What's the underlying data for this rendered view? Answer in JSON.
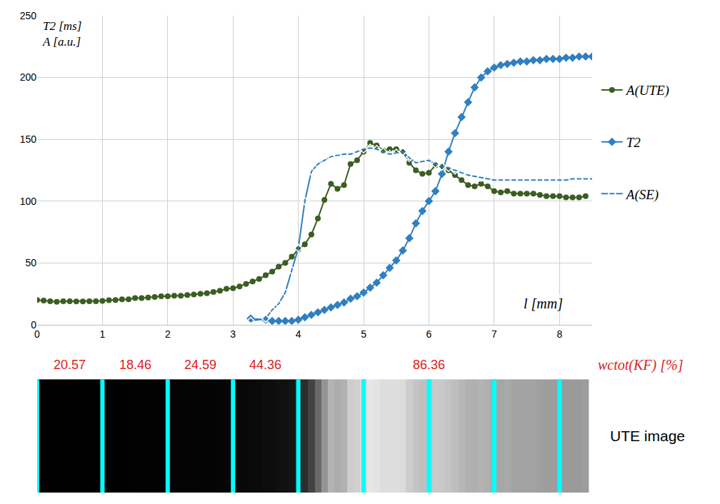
{
  "chart_data": {
    "type": "line",
    "x_label": "l [mm]",
    "y_labels": [
      "T2 [ms]",
      "A [a.u.]"
    ],
    "xlim": [
      0,
      8.5
    ],
    "xticks": [
      0,
      1,
      2,
      3,
      4,
      5,
      6,
      7,
      8
    ],
    "ylim": [
      0,
      250
    ],
    "yticks": [
      0,
      50,
      100,
      150,
      200,
      250
    ],
    "grid": true,
    "legend": "right",
    "series": [
      {
        "name": "A(UTE)",
        "color": "#3b5e22",
        "marker": "circle",
        "line_style": "solid",
        "x": [
          0,
          0.1,
          0.2,
          0.3,
          0.4,
          0.5,
          0.6,
          0.7,
          0.8,
          0.9,
          1.0,
          1.1,
          1.2,
          1.3,
          1.4,
          1.5,
          1.6,
          1.7,
          1.8,
          1.9,
          2.0,
          2.1,
          2.2,
          2.3,
          2.4,
          2.5,
          2.6,
          2.7,
          2.8,
          2.9,
          3.0,
          3.1,
          3.2,
          3.3,
          3.4,
          3.5,
          3.6,
          3.7,
          3.8,
          3.9,
          4.0,
          4.1,
          4.2,
          4.3,
          4.4,
          4.5,
          4.6,
          4.7,
          4.8,
          4.9,
          5.0,
          5.1,
          5.2,
          5.3,
          5.4,
          5.5,
          5.6,
          5.7,
          5.8,
          5.9,
          6.0,
          6.1,
          6.2,
          6.3,
          6.4,
          6.5,
          6.6,
          6.7,
          6.8,
          6.9,
          7.0,
          7.1,
          7.2,
          7.3,
          7.4,
          7.5,
          7.6,
          7.7,
          7.8,
          7.9,
          8.0,
          8.1,
          8.2,
          8.3,
          8.4
        ],
        "values": [
          20,
          19.5,
          19,
          18.5,
          19,
          19,
          18.8,
          18.8,
          18.9,
          19,
          19.2,
          19.8,
          20,
          20.5,
          20.5,
          21.5,
          21.5,
          22,
          22.5,
          23,
          23,
          23.5,
          23.5,
          24,
          24.5,
          25,
          25.5,
          26.5,
          27.5,
          29,
          29.5,
          31,
          33,
          35,
          37,
          40,
          43,
          47,
          50,
          55,
          61,
          65,
          73,
          86,
          101,
          114,
          110,
          113,
          130,
          133,
          140,
          147,
          145,
          141,
          142,
          142,
          140,
          131,
          125,
          122,
          123,
          129,
          128,
          125,
          121,
          117,
          113,
          112,
          114,
          112,
          108,
          107,
          108,
          106,
          106,
          106,
          106,
          105,
          104,
          104,
          104,
          103,
          103,
          103,
          104
        ]
      },
      {
        "name": "T2",
        "color": "#2f7fc1",
        "marker": "diamond",
        "line_style": "solid",
        "x": [
          3.27,
          3.5,
          3.6,
          3.7,
          3.8,
          3.9,
          4.0,
          4.1,
          4.2,
          4.3,
          4.4,
          4.5,
          4.6,
          4.7,
          4.8,
          4.9,
          5.0,
          5.1,
          5.2,
          5.3,
          5.4,
          5.5,
          5.6,
          5.7,
          5.8,
          5.9,
          6.0,
          6.1,
          6.2,
          6.3,
          6.4,
          6.5,
          6.6,
          6.7,
          6.8,
          6.9,
          7.0,
          7.1,
          7.2,
          7.3,
          7.4,
          7.5,
          7.6,
          7.7,
          7.8,
          7.9,
          8.0,
          8.1,
          8.2,
          8.3,
          8.4,
          8.5
        ],
        "values": [
          5,
          4,
          3,
          3,
          3,
          3,
          4,
          6,
          8,
          10,
          12,
          14,
          16,
          18,
          21,
          23,
          26,
          30,
          34,
          40,
          46,
          52,
          60,
          70,
          82,
          92,
          100,
          108,
          122,
          140,
          155,
          168,
          180,
          192,
          200,
          205,
          208,
          210,
          211,
          212,
          213,
          213,
          214,
          214,
          215,
          215,
          215,
          216,
          216,
          217,
          217,
          217
        ]
      },
      {
        "name": "A(SE)",
        "color": "#2f7fc1",
        "marker": "diamond-open",
        "line_style": "solid",
        "x": [
          3.27,
          3.5,
          3.6,
          3.7,
          3.8,
          3.9,
          4.0,
          4.1,
          4.2,
          4.3,
          4.4,
          4.5,
          4.6,
          4.7,
          4.8,
          4.9,
          5.0,
          5.1,
          5.2,
          5.3,
          5.4,
          5.5,
          5.6,
          5.7,
          5.8,
          5.9,
          6.0,
          6.1,
          6.2,
          6.3,
          6.4,
          6.5,
          6.6,
          6.7,
          6.8,
          6.9,
          7.0,
          7.1,
          7.2,
          7.3,
          7.4,
          7.5,
          7.6,
          7.7,
          7.8,
          7.9,
          8.0,
          8.1,
          8.2,
          8.3,
          8.4,
          8.5
        ],
        "values": [
          3,
          5,
          12,
          17,
          26,
          44,
          62,
          100,
          124,
          130,
          133,
          136,
          137,
          138,
          138,
          140,
          142,
          143,
          142,
          140,
          138,
          139,
          140,
          135,
          131,
          132,
          133,
          130,
          128,
          127,
          125,
          123,
          121,
          120,
          119,
          118,
          117,
          117,
          117,
          117,
          117,
          117,
          117,
          117,
          117,
          117,
          117,
          117,
          118,
          118,
          118,
          118
        ]
      }
    ],
    "wc_label": "wctot(KF) [%]",
    "wc_tot": [
      {
        "start": 0,
        "end": 1,
        "value": 20.57
      },
      {
        "start": 1,
        "end": 2,
        "value": 18.46
      },
      {
        "start": 2,
        "end": 3,
        "value": 24.59
      },
      {
        "start": 3,
        "end": 4,
        "value": 44.36
      },
      {
        "start": 4,
        "end": 8,
        "value": 86.36
      }
    ],
    "slice_boundaries": [
      0,
      1,
      2,
      3,
      4,
      5,
      6,
      7,
      8
    ],
    "image_label": "UTE image"
  }
}
